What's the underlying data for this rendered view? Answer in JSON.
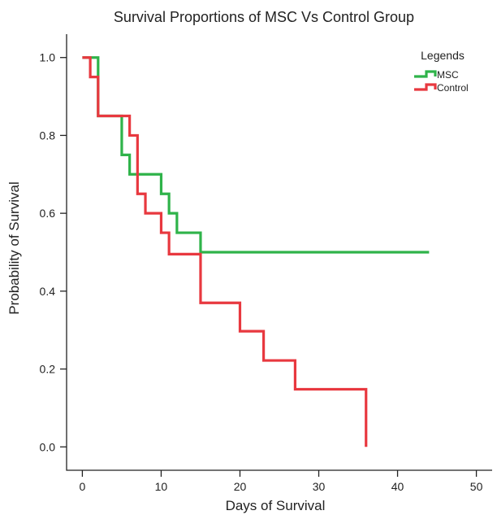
{
  "chart_data": {
    "type": "line",
    "step": true,
    "title": "Survival Proportions of MSC Vs Control Group",
    "xlabel": "Days of Survival",
    "ylabel": "Probability of Survival",
    "xlim": [
      -2,
      52
    ],
    "ylim": [
      -0.06,
      1.06
    ],
    "x_ticks": [
      0,
      10,
      20,
      30,
      40,
      50
    ],
    "y_ticks": [
      0.0,
      0.2,
      0.4,
      0.6,
      0.8,
      1.0
    ],
    "x_tick_labels": [
      "0",
      "10",
      "20",
      "30",
      "40",
      "50"
    ],
    "y_tick_labels": [
      "0.0",
      "0.2",
      "0.4",
      "0.6",
      "0.8",
      "1.0"
    ],
    "grid": false,
    "legend": {
      "title": "Legends",
      "placement": "top-right"
    },
    "series": [
      {
        "name": "MSC",
        "color": "#2fb34a",
        "x": [
          0,
          2,
          5,
          6,
          10,
          11,
          12,
          15,
          44
        ],
        "y": [
          1.0,
          0.85,
          0.75,
          0.7,
          0.65,
          0.6,
          0.55,
          0.5,
          0.5
        ]
      },
      {
        "name": "Control",
        "color": "#e8383f",
        "x": [
          0,
          1,
          2,
          6,
          7,
          8,
          10,
          11,
          15,
          20,
          23,
          27,
          36
        ],
        "y": [
          1.0,
          0.95,
          0.85,
          0.8,
          0.65,
          0.6,
          0.55,
          0.495,
          0.37,
          0.297,
          0.222,
          0.148,
          0.0
        ]
      }
    ]
  }
}
